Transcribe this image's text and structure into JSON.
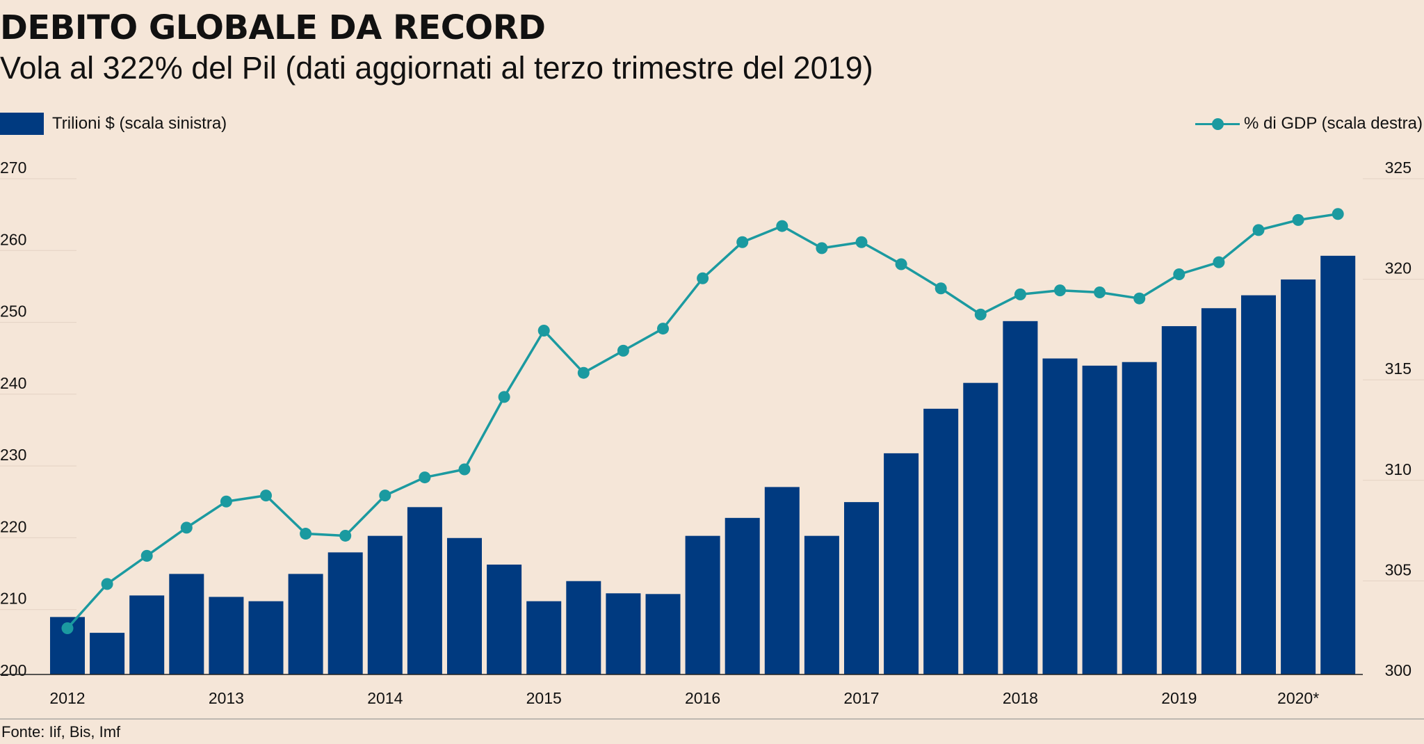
{
  "header": {
    "title": "DEBITO GLOBALE DA RECORD",
    "subtitle": "Vola al 322% del Pil (dati aggiornati al terzo trimestre del 2019)"
  },
  "legend": {
    "bars_label": "Trilioni $ (scala sinistra)",
    "line_label": "% di GDP (scala destra)"
  },
  "source": "Fonte: Iif, Bis, Imf",
  "colors": {
    "bar": "#003a80",
    "line": "#1b9aa0",
    "background": "#f5e6d8",
    "grid": "#e3d2c3"
  },
  "chart_data": {
    "type": "bar",
    "combo_with": "line",
    "left_axis": {
      "ylim": [
        200,
        270
      ],
      "ticks": [
        "200",
        "210",
        "220",
        "230",
        "240",
        "250",
        "260",
        "270"
      ]
    },
    "right_axis": {
      "ylim": [
        300,
        325
      ],
      "ticks": [
        "300",
        "305",
        "310",
        "315",
        "320",
        "325"
      ]
    },
    "x_tick_labels": [
      {
        "label": "2012",
        "index": 0
      },
      {
        "label": "2013",
        "index": 4
      },
      {
        "label": "2014",
        "index": 8
      },
      {
        "label": "2015",
        "index": 12
      },
      {
        "label": "2016",
        "index": 16
      },
      {
        "label": "2017",
        "index": 20
      },
      {
        "label": "2018",
        "index": 24
      },
      {
        "label": "2019",
        "index": 28
      },
      {
        "label": "2020*",
        "index": 31
      }
    ],
    "series": [
      {
        "name": "Trilioni $ (scala sinistra)",
        "type": "bar",
        "axis": "left",
        "values": [
          208,
          205.8,
          211,
          214,
          210.8,
          210.2,
          214,
          217,
          219.3,
          223.3,
          219,
          215.3,
          210.2,
          213,
          211.3,
          211.2,
          219.3,
          221.8,
          226.1,
          219.3,
          224,
          230.8,
          237,
          240.6,
          249.2,
          244,
          243,
          243.5,
          248.5,
          251,
          252.8,
          255,
          258.3
        ]
      },
      {
        "name": "% di GDP (scala destra)",
        "type": "line",
        "axis": "right",
        "values": [
          302.3,
          304.5,
          305.9,
          307.3,
          308.6,
          308.9,
          307.0,
          306.9,
          308.9,
          309.8,
          310.2,
          313.8,
          317.1,
          315.0,
          316.1,
          317.2,
          319.7,
          321.5,
          322.3,
          321.2,
          321.5,
          320.4,
          319.2,
          317.9,
          318.9,
          319.1,
          319.0,
          318.7,
          319.9,
          320.5,
          322.1,
          322.6,
          322.9
        ]
      }
    ]
  }
}
